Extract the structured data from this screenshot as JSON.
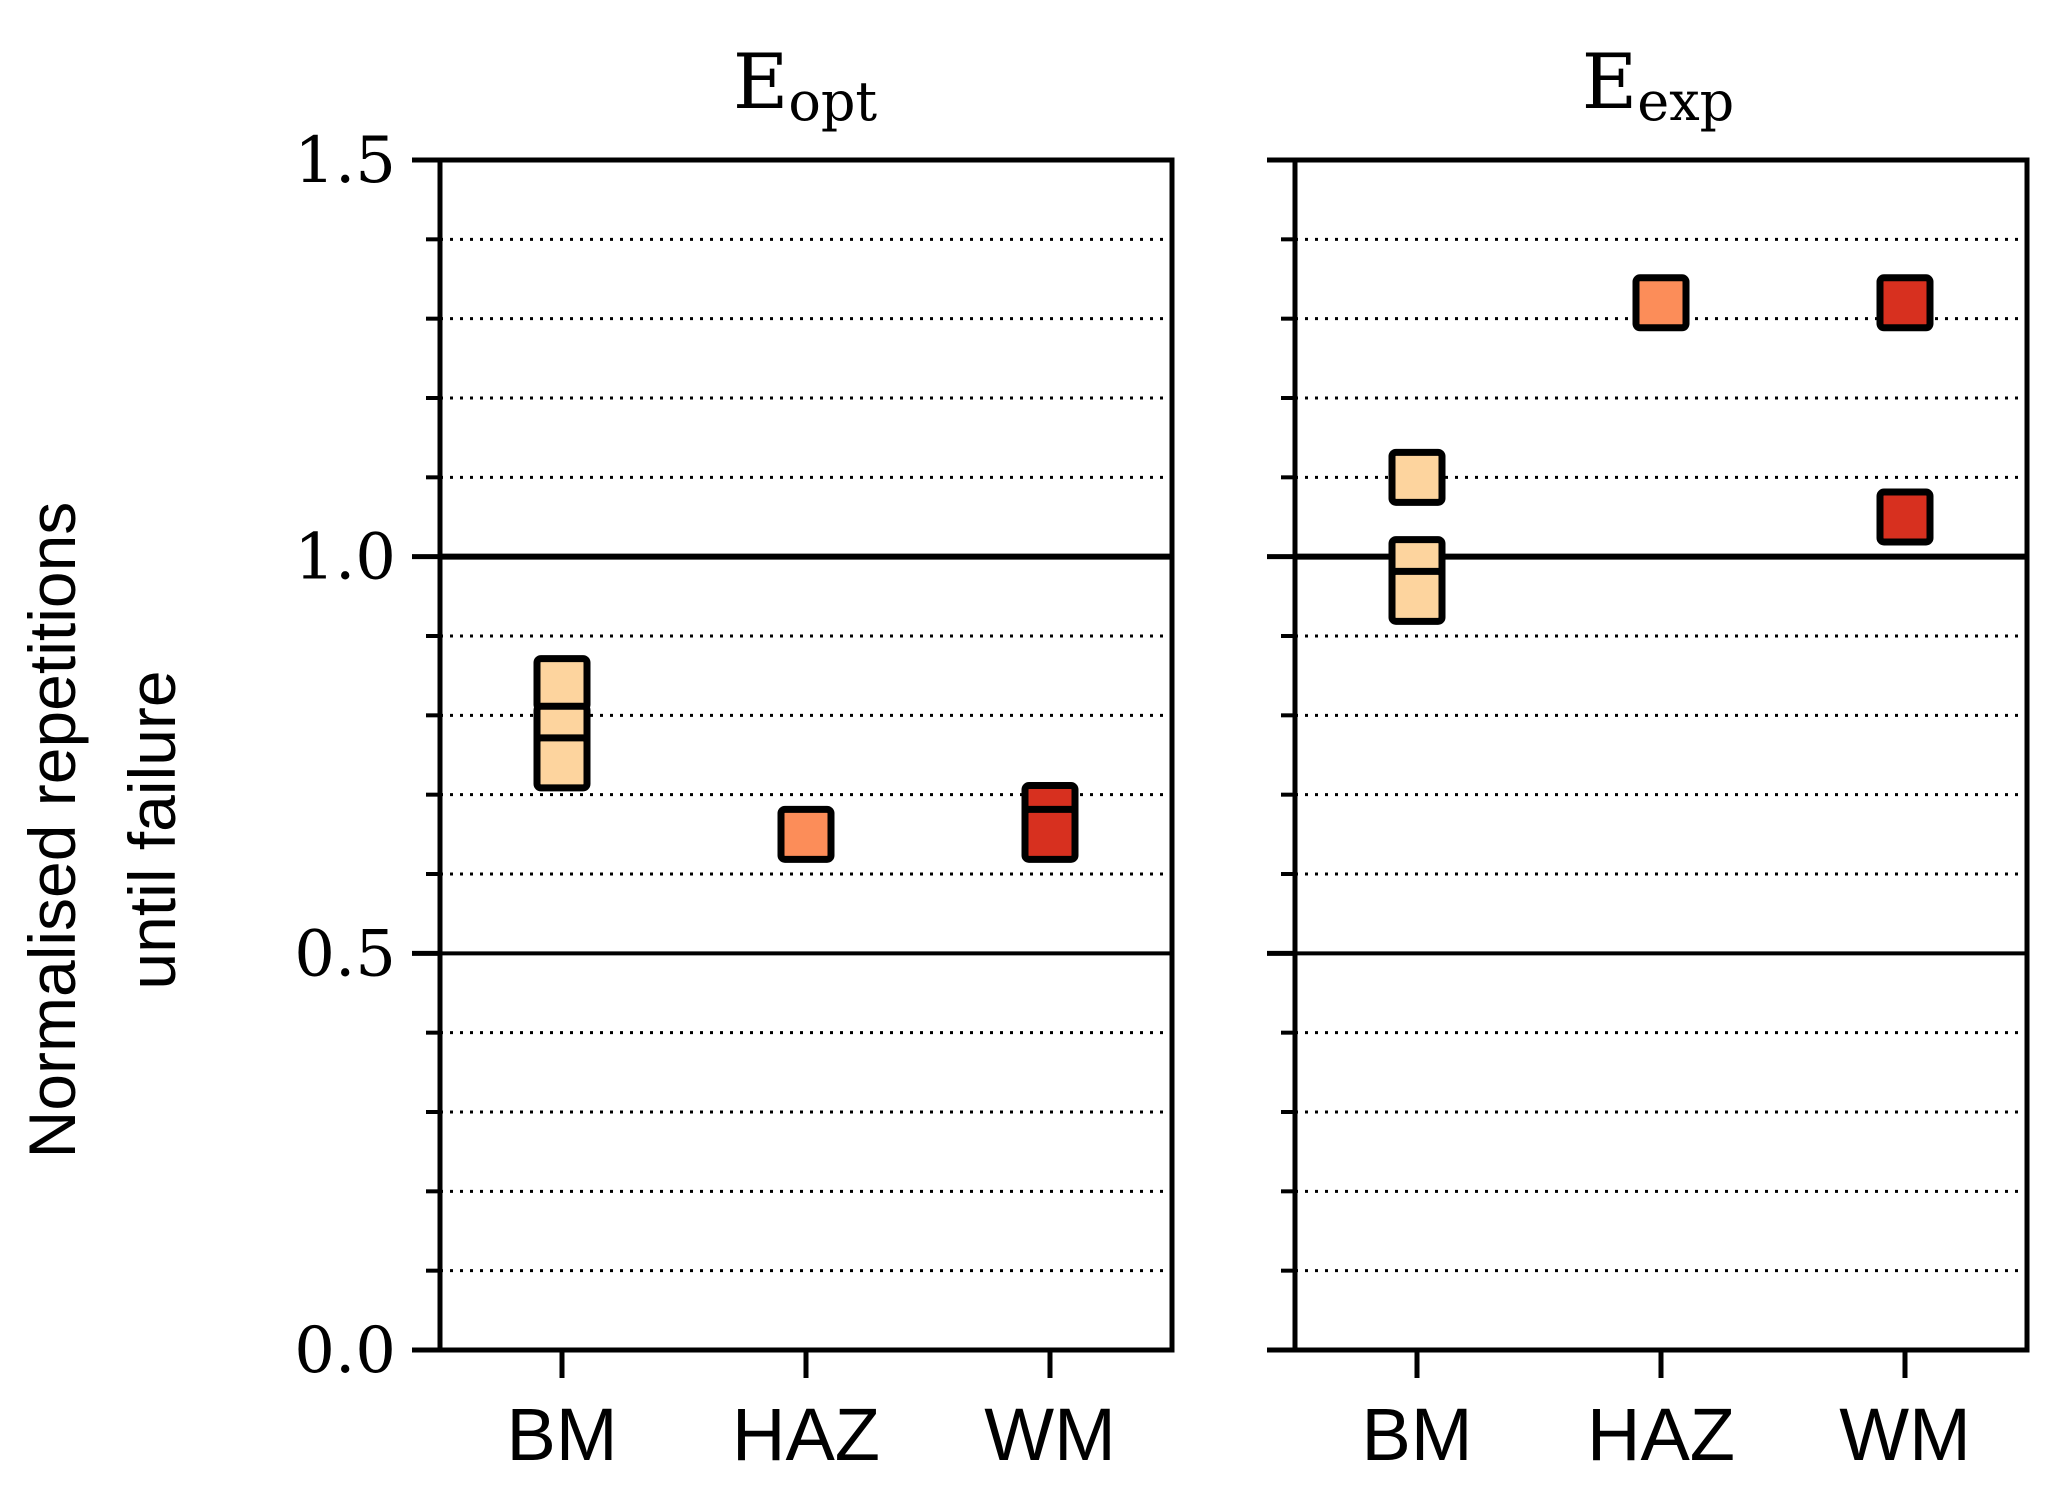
{
  "chart_data": [
    {
      "type": "scatter",
      "title_main": "E",
      "title_sub": "opt",
      "ylabel_line1": "Normalised repetitions",
      "ylabel_line2": "until failure",
      "categories": [
        "BM",
        "HAZ",
        "WM"
      ],
      "ylim": [
        0,
        1.5
      ],
      "yticks": [
        0.0,
        0.5,
        1.0,
        1.5
      ],
      "ytick_labels": [
        "0.0",
        "0.5",
        "1.0",
        "1.5"
      ],
      "minor_grid_step": 0.1,
      "reference_lines": [
        0.5,
        1.0
      ],
      "colors": {
        "BM": "#fdd49e",
        "HAZ": "#fc8d59",
        "WM": "#d7301f"
      },
      "points": [
        {
          "category": "BM",
          "value": 0.84
        },
        {
          "category": "BM",
          "value": 0.78
        },
        {
          "category": "BM",
          "value": 0.74
        },
        {
          "category": "HAZ",
          "value": 0.65
        },
        {
          "category": "WM",
          "value": 0.68
        },
        {
          "category": "WM",
          "value": 0.65
        }
      ]
    },
    {
      "type": "scatter",
      "title_main": "E",
      "title_sub": "exp",
      "categories": [
        "BM",
        "HAZ",
        "WM"
      ],
      "ylim": [
        0,
        1.5
      ],
      "yticks": [
        0.0,
        0.5,
        1.0,
        1.5
      ],
      "minor_grid_step": 0.1,
      "reference_lines": [
        0.5,
        1.0
      ],
      "colors": {
        "BM": "#fdd49e",
        "HAZ": "#fc8d59",
        "WM": "#d7301f"
      },
      "points": [
        {
          "category": "BM",
          "value": 1.1
        },
        {
          "category": "BM",
          "value": 0.99
        },
        {
          "category": "BM",
          "value": 0.95
        },
        {
          "category": "HAZ",
          "value": 1.32
        },
        {
          "category": "WM",
          "value": 1.32
        },
        {
          "category": "WM",
          "value": 1.05
        }
      ]
    }
  ]
}
